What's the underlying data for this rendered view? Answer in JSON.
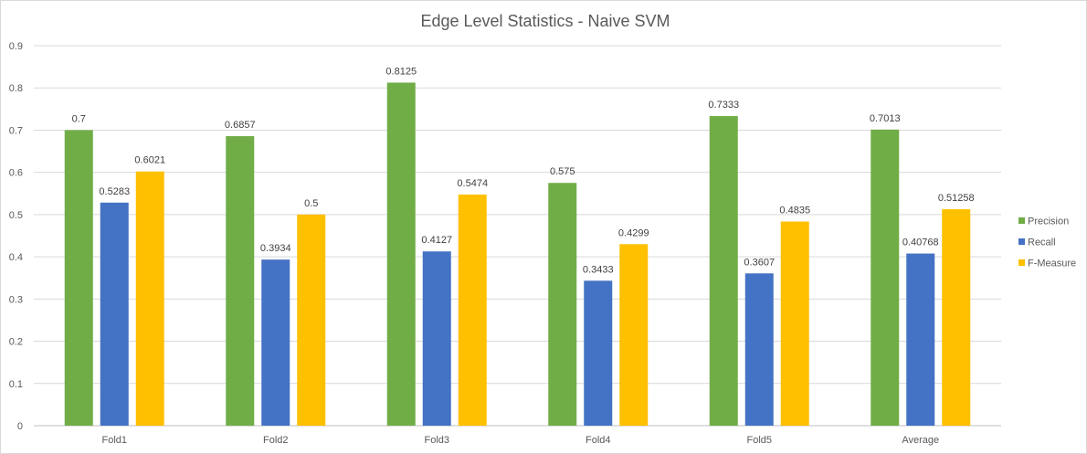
{
  "chart_data": {
    "type": "bar",
    "title": "Edge Level Statistics - Naive SVM",
    "xlabel": "",
    "ylabel": "",
    "categories": [
      "Fold1",
      "Fold2",
      "Fold3",
      "Fold4",
      "Fold5",
      "Average"
    ],
    "series": [
      {
        "name": "Precision",
        "color": "#70ad47",
        "values": [
          0.7,
          0.6857,
          0.8125,
          0.575,
          0.7333,
          0.7013
        ],
        "labels": [
          "0.7",
          "0.6857",
          "0.8125",
          "0.575",
          "0.7333",
          "0.7013"
        ]
      },
      {
        "name": "Recall",
        "color": "#4472c4",
        "values": [
          0.5283,
          0.3934,
          0.4127,
          0.3433,
          0.3607,
          0.40768
        ],
        "labels": [
          "0.5283",
          "0.3934",
          "0.4127",
          "0.3433",
          "0.3607",
          "0.40768"
        ]
      },
      {
        "name": "F-Measure",
        "color": "#ffc000",
        "values": [
          0.6021,
          0.5,
          0.5474,
          0.4299,
          0.4835,
          0.51258
        ],
        "labels": [
          "0.6021",
          "0.5",
          "0.5474",
          "0.4299",
          "0.4835",
          "0.51258"
        ]
      }
    ],
    "ylim": [
      0,
      0.9
    ],
    "yticks": [
      "0",
      "0.1",
      "0.2",
      "0.3",
      "0.4",
      "0.5",
      "0.6",
      "0.7",
      "0.8",
      "0.9"
    ],
    "grid": true,
    "legend_position": "right"
  }
}
